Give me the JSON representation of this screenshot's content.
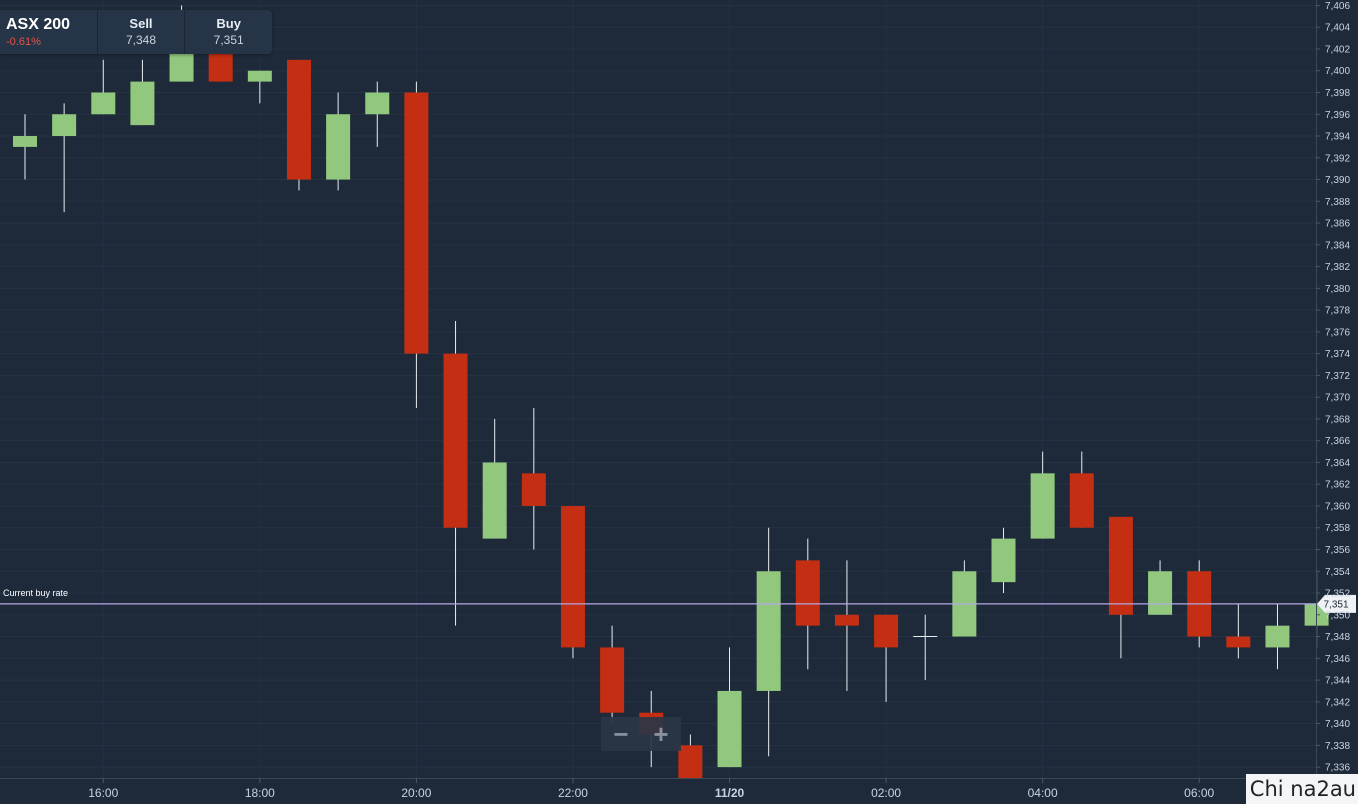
{
  "quote": {
    "instrument": "ASX 200",
    "change": "-0.61%",
    "sell_label": "Sell",
    "sell_value": "7,348",
    "buy_label": "Buy",
    "buy_value": "7,351"
  },
  "zoom": {
    "out_label": "−",
    "in_label": "+"
  },
  "watermark": "Chi na2au",
  "chart_data": {
    "type": "candlestick",
    "ylim": [
      7335,
      7406.5
    ],
    "y_ticks": [
      "7,336",
      "7,338",
      "7,340",
      "7,342",
      "7,344",
      "7,346",
      "7,348",
      "7,350",
      "7,352",
      "7,354",
      "7,356",
      "7,358",
      "7,360",
      "7,362",
      "7,364",
      "7,366",
      "7,368",
      "7,370",
      "7,372",
      "7,374",
      "7,376",
      "7,378",
      "7,380",
      "7,382",
      "7,384",
      "7,386",
      "7,388",
      "7,390",
      "7,392",
      "7,394",
      "7,396",
      "7,398",
      "7,400",
      "7,402",
      "7,404",
      "7,406"
    ],
    "x_ticks": [
      "16:00",
      "18:00",
      "20:00",
      "22:00",
      "11/20",
      "02:00",
      "04:00",
      "06:00"
    ],
    "x_tick_index": [
      2,
      6,
      10,
      14,
      18,
      22,
      26,
      30
    ],
    "candles": [
      {
        "o": 7393,
        "h": 7396,
        "l": 7390,
        "c": 7394
      },
      {
        "o": 7394,
        "h": 7397,
        "l": 7387,
        "c": 7396
      },
      {
        "o": 7396,
        "h": 7401,
        "l": 7396,
        "c": 7398
      },
      {
        "o": 7395,
        "h": 7401,
        "l": 7395,
        "c": 7399
      },
      {
        "o": 7399,
        "h": 7406,
        "l": 7399,
        "c": 7403
      },
      {
        "o": 7403,
        "h": 7405,
        "l": 7399,
        "c": 7399
      },
      {
        "o": 7399,
        "h": 7400,
        "l": 7397,
        "c": 7400
      },
      {
        "o": 7401,
        "h": 7401,
        "l": 7389,
        "c": 7390
      },
      {
        "o": 7390,
        "h": 7398,
        "l": 7389,
        "c": 7396
      },
      {
        "o": 7396,
        "h": 7399,
        "l": 7393,
        "c": 7398
      },
      {
        "o": 7398,
        "h": 7399,
        "l": 7369,
        "c": 7374
      },
      {
        "o": 7374,
        "h": 7377,
        "l": 7349,
        "c": 7358
      },
      {
        "o": 7357,
        "h": 7368,
        "l": 7357,
        "c": 7364
      },
      {
        "o": 7363,
        "h": 7369,
        "l": 7356,
        "c": 7360
      },
      {
        "o": 7360,
        "h": 7360,
        "l": 7346,
        "c": 7347
      },
      {
        "o": 7347,
        "h": 7349,
        "l": 7340,
        "c": 7341
      },
      {
        "o": 7341,
        "h": 7343,
        "l": 7336,
        "c": 7339
      },
      {
        "o": 7338,
        "h": 7339,
        "l": 7335,
        "c": 7335
      },
      {
        "o": 7336,
        "h": 7347,
        "l": 7336,
        "c": 7343
      },
      {
        "o": 7343,
        "h": 7358,
        "l": 7337,
        "c": 7354
      },
      {
        "o": 7355,
        "h": 7357,
        "l": 7345,
        "c": 7349
      },
      {
        "o": 7350,
        "h": 7355,
        "l": 7343,
        "c": 7349
      },
      {
        "o": 7350,
        "h": 7350,
        "l": 7342,
        "c": 7347
      },
      {
        "o": 7348,
        "h": 7350,
        "l": 7344,
        "c": 7348
      },
      {
        "o": 7348,
        "h": 7355,
        "l": 7348,
        "c": 7354
      },
      {
        "o": 7353,
        "h": 7358,
        "l": 7352,
        "c": 7357
      },
      {
        "o": 7357,
        "h": 7365,
        "l": 7357,
        "c": 7363
      },
      {
        "o": 7363,
        "h": 7365,
        "l": 7358,
        "c": 7358
      },
      {
        "o": 7359,
        "h": 7359,
        "l": 7346,
        "c": 7350
      },
      {
        "o": 7350,
        "h": 7355,
        "l": 7350,
        "c": 7354
      },
      {
        "o": 7354,
        "h": 7355,
        "l": 7347,
        "c": 7348
      },
      {
        "o": 7348,
        "h": 7351,
        "l": 7346,
        "c": 7347
      },
      {
        "o": 7347,
        "h": 7351,
        "l": 7345,
        "c": 7349
      },
      {
        "o": 7349,
        "h": 7354,
        "l": 7347,
        "c": 7351
      }
    ],
    "current_rate": {
      "label": "Current buy rate",
      "value": 7351,
      "value_label": "7,351"
    },
    "colors": {
      "up": "#91c87d",
      "down": "#c42e12",
      "background": "#1e2a3a",
      "rate_line": "#b3a8e6",
      "axis_text": "#c9d3df"
    }
  }
}
